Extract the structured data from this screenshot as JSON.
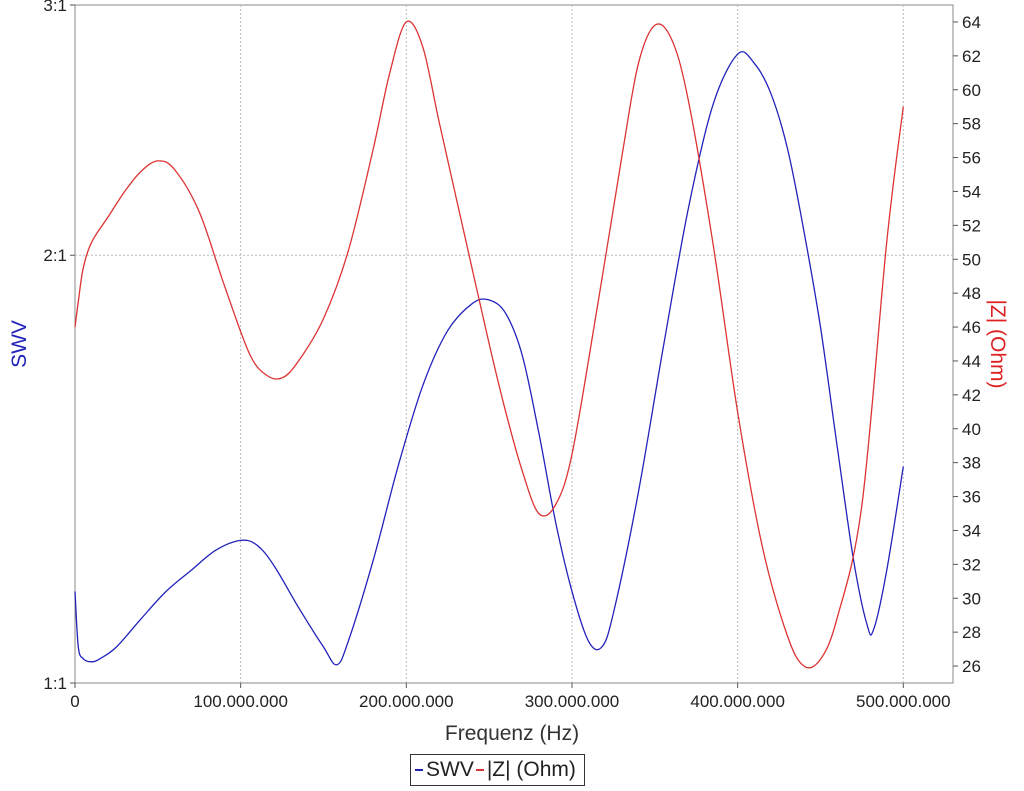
{
  "chart_data": {
    "type": "line",
    "xlabel": "Frequenz (Hz)",
    "ylabel_left": "SWV",
    "ylabel_right": "|Z| (Ohm)",
    "xlim": [
      0,
      530000000
    ],
    "x_ticks": [
      {
        "value": 0,
        "label": "0"
      },
      {
        "value": 100000000,
        "label": "100.000.000"
      },
      {
        "value": 200000000,
        "label": "200.000.000"
      },
      {
        "value": 300000000,
        "label": "300.000.000"
      },
      {
        "value": 400000000,
        "label": "400.000.000"
      },
      {
        "value": 500000000,
        "label": "500.000.000"
      }
    ],
    "y_left": {
      "scale": "log",
      "ylim": [
        1,
        3
      ],
      "ticks": [
        {
          "value": 1,
          "label": "1:1"
        },
        {
          "value": 2,
          "label": "2:1"
        },
        {
          "value": 3,
          "label": "3:1"
        }
      ]
    },
    "y_right": {
      "scale": "linear",
      "ylim": [
        25,
        65
      ],
      "ticks": [
        26,
        28,
        30,
        32,
        34,
        36,
        38,
        40,
        42,
        44,
        46,
        48,
        50,
        52,
        54,
        56,
        58,
        60,
        62,
        64
      ]
    },
    "grid": true,
    "legend_position": "bottom-center",
    "series": [
      {
        "name": "SWV",
        "axis": "left",
        "color": "#2222bb",
        "x": [
          0,
          2000000,
          5000000,
          10000000,
          15000000,
          25000000,
          40000000,
          55000000,
          70000000,
          85000000,
          100000000,
          110000000,
          120000000,
          135000000,
          150000000,
          158000000,
          165000000,
          180000000,
          195000000,
          210000000,
          225000000,
          240000000,
          250000000,
          260000000,
          270000000,
          280000000,
          290000000,
          300000000,
          310000000,
          318000000,
          325000000,
          340000000,
          355000000,
          370000000,
          385000000,
          400000000,
          410000000,
          420000000,
          430000000,
          440000000,
          450000000,
          460000000,
          470000000,
          478000000,
          482000000,
          490000000,
          500000000
        ],
        "values": [
          1.16,
          1.06,
          1.04,
          1.035,
          1.04,
          1.06,
          1.11,
          1.16,
          1.2,
          1.24,
          1.26,
          1.25,
          1.21,
          1.13,
          1.06,
          1.03,
          1.07,
          1.22,
          1.42,
          1.62,
          1.77,
          1.85,
          1.86,
          1.82,
          1.7,
          1.5,
          1.3,
          1.16,
          1.07,
          1.06,
          1.12,
          1.36,
          1.72,
          2.15,
          2.55,
          2.77,
          2.73,
          2.6,
          2.38,
          2.08,
          1.78,
          1.47,
          1.22,
          1.1,
          1.09,
          1.2,
          1.42
        ]
      },
      {
        "name": "|Z| (Ohm)",
        "axis": "right",
        "color": "#dd3333",
        "x": [
          0,
          2000000,
          5000000,
          10000000,
          20000000,
          30000000,
          40000000,
          50000000,
          60000000,
          75000000,
          90000000,
          105000000,
          115000000,
          125000000,
          135000000,
          150000000,
          165000000,
          180000000,
          190000000,
          200000000,
          210000000,
          220000000,
          235000000,
          250000000,
          260000000,
          270000000,
          280000000,
          290000000,
          300000000,
          315000000,
          330000000,
          340000000,
          350000000,
          360000000,
          370000000,
          385000000,
          400000000,
          415000000,
          430000000,
          440000000,
          450000000,
          460000000,
          475000000,
          490000000,
          500000000
        ],
        "values": [
          46,
          47.5,
          49.5,
          51,
          52.5,
          54,
          55.2,
          55.8,
          55.3,
          52.8,
          48.5,
          44.5,
          43.2,
          43,
          44,
          46.5,
          50.5,
          56.5,
          61,
          64,
          62.5,
          58,
          51.5,
          45,
          41,
          37.5,
          35,
          35.5,
          38.5,
          47,
          56,
          61.5,
          63.8,
          63,
          59.5,
          51,
          41,
          33,
          27.8,
          26,
          26.4,
          28.8,
          35.5,
          51,
          59
        ]
      }
    ]
  }
}
